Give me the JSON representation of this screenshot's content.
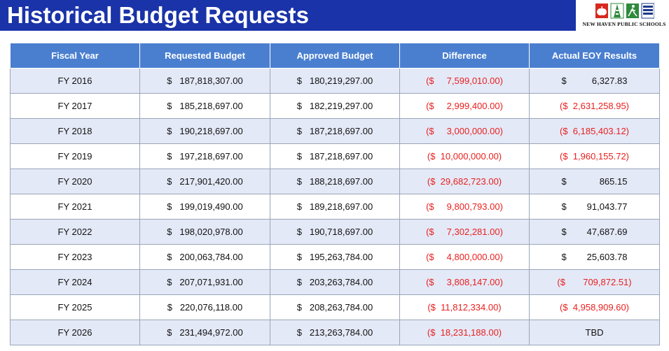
{
  "title": "Historical Budget Requests",
  "logo": {
    "text": "NEW HAVEN PUBLIC SCHOOLS",
    "icons": [
      "apple-icon",
      "tower-icon",
      "runner-icon",
      "book-icon"
    ],
    "colors": {
      "red": "#d7281f",
      "green": "#2e8a3c",
      "blue": "#1d3a8a"
    }
  },
  "colors": {
    "title_bar": "#1a33a8",
    "header": "#4a7fd0",
    "row_stripe": "#e4e9f7",
    "negative": "#e8201e"
  },
  "table": {
    "headers": [
      "Fiscal Year",
      "Requested Budget",
      "Approved Budget",
      "Difference",
      "Actual EOY Results"
    ],
    "rows": [
      {
        "year": "FY 2016",
        "requested": "$   187,818,307.00",
        "approved": "$   180,219,297.00",
        "difference": "($     7,599,010.00)",
        "eoy": "$          6,327.83",
        "eoy_negative": false
      },
      {
        "year": "FY 2017",
        "requested": "$   185,218,697.00",
        "approved": "$   182,219,297.00",
        "difference": "($     2,999,400.00)",
        "eoy": "($  2,631,258.95)",
        "eoy_negative": true
      },
      {
        "year": "FY 2018",
        "requested": "$   190,218,697.00",
        "approved": "$   187,218,697.00",
        "difference": "($     3,000,000.00)",
        "eoy": "($  6,185,403.12)",
        "eoy_negative": true
      },
      {
        "year": "FY 2019",
        "requested": "$   197,218,697.00",
        "approved": "$   187,218,697.00",
        "difference": "($  10,000,000.00)",
        "eoy": "($  1,960,155.72)",
        "eoy_negative": true
      },
      {
        "year": "FY 2020",
        "requested": "$   217,901,420.00",
        "approved": "$   188,218,697.00",
        "difference": "($  29,682,723.00)",
        "eoy": "$             865.15",
        "eoy_negative": false
      },
      {
        "year": "FY 2021",
        "requested": "$   199,019,490.00",
        "approved": "$   189,218,697.00",
        "difference": "($     9,800,793.00)",
        "eoy": "$        91,043.77",
        "eoy_negative": false
      },
      {
        "year": "FY 2022",
        "requested": "$   198,020,978.00",
        "approved": "$   190,718,697.00",
        "difference": "($     7,302,281.00)",
        "eoy": "$        47,687.69",
        "eoy_negative": false
      },
      {
        "year": "FY 2023",
        "requested": "$   200,063,784.00",
        "approved": "$   195,263,784.00",
        "difference": "($     4,800,000.00)",
        "eoy": "$        25,603.78",
        "eoy_negative": false
      },
      {
        "year": "FY 2024",
        "requested": "$   207,071,931.00",
        "approved": "$   203,263,784.00",
        "difference": "($     3,808,147.00)",
        "eoy": "($       709,872.51)",
        "eoy_negative": true
      },
      {
        "year": "FY 2025",
        "requested": "$   220,076,118.00",
        "approved": "$   208,263,784.00",
        "difference": "($  11,812,334.00)",
        "eoy": "($  4,958,909.60)",
        "eoy_negative": true
      },
      {
        "year": "FY 2026",
        "requested": "$   231,494,972.00",
        "approved": "$   213,263,784.00",
        "difference": "($  18,231,188.00)",
        "eoy": "TBD",
        "eoy_negative": false
      }
    ]
  }
}
